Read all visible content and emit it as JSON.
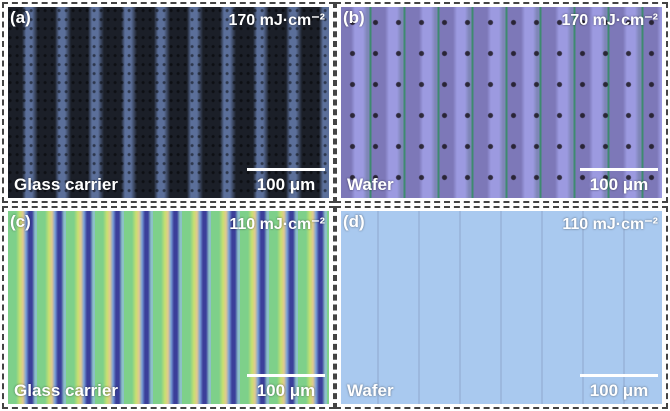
{
  "panels": [
    {
      "label": "(a)",
      "fluence": "170 mJ·cm⁻²",
      "substrate": "Glass carrier",
      "scale_bar": "100 μm"
    },
    {
      "label": "(b)",
      "fluence": "170 mJ·cm⁻²",
      "substrate": "Wafer",
      "scale_bar": "100 μm"
    },
    {
      "label": "(c)",
      "fluence": "110 mJ·cm⁻²",
      "substrate": "Glass carrier",
      "scale_bar": "100 μm"
    },
    {
      "label": "(d)",
      "fluence": "110 mJ·cm⁻²",
      "substrate": "Wafer",
      "scale_bar": "100 μm"
    }
  ]
}
